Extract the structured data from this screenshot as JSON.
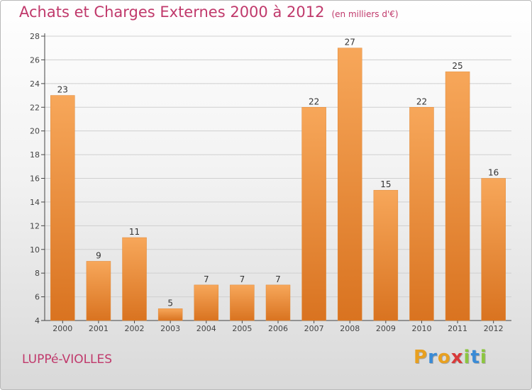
{
  "header": {
    "title": "Achats et Charges Externes 2000 à 2012",
    "unit": "(en milliers d'€)"
  },
  "footer": {
    "place": "LUPPé-VIOLLES",
    "brand": "Proxiti",
    "brand_colors": [
      "#e8a020",
      "#3a8bd6",
      "#e8a020",
      "#d83a3a",
      "#8cc63f",
      "#3a8bd6",
      "#8cc63f"
    ]
  },
  "colors": {
    "title": "#c0396b",
    "bar_light": "#f7a75a",
    "bar_dark": "#d97320",
    "axis": "#444444",
    "grid": "#cfcfcf"
  },
  "chart_data": {
    "type": "bar",
    "title": "Achats et Charges Externes 2000 à 2012",
    "subtitle": "(en milliers d'€)",
    "xlabel": "",
    "ylabel": "",
    "categories": [
      "2000",
      "2001",
      "2002",
      "2003",
      "2004",
      "2005",
      "2006",
      "2007",
      "2008",
      "2009",
      "2010",
      "2011",
      "2012"
    ],
    "values": [
      23,
      9,
      11,
      5,
      7,
      7,
      7,
      22,
      27,
      15,
      22,
      25,
      16
    ],
    "ylim": [
      4,
      28
    ],
    "yticks": [
      4,
      6,
      8,
      10,
      12,
      14,
      16,
      18,
      20,
      22,
      24,
      26,
      28
    ],
    "grid": true,
    "data_labels": true
  }
}
